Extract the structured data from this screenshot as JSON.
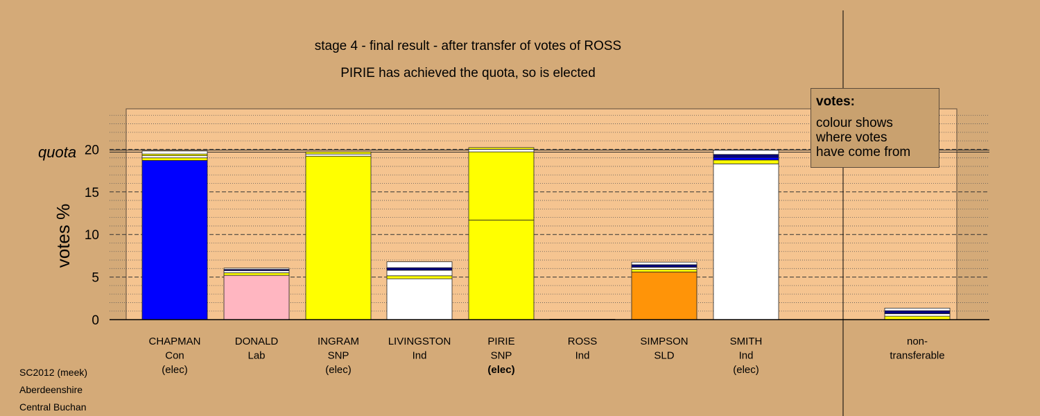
{
  "title_line1": "stage 4 - final result - after transfer of votes of ROSS",
  "title_line2": "PIRIE has achieved the quota, so is elected",
  "legend": {
    "title": "votes:",
    "lines": [
      "colour shows",
      "where votes",
      "have come from"
    ]
  },
  "footer": [
    "SC2012 (meek)",
    "Aberdeenshire",
    "Central Buchan"
  ],
  "colors": {
    "background": "#d4aa78",
    "plot_area": "#f5c490",
    "Con": "#0000ff",
    "Lab": "#ffb6c1",
    "SNP": "#ffff00",
    "Ind": "#ffffff",
    "SLD": "#ff9408",
    "navy": "#000080"
  },
  "chart_data": {
    "type": "bar",
    "stacked": true,
    "ylabel": "votes %",
    "quota_label": "quota",
    "quota": 19.8,
    "ylim": [
      0,
      25
    ],
    "yticks": [
      0,
      5,
      10,
      15,
      20
    ],
    "grid": true,
    "categories": [
      {
        "name": "CHAPMAN",
        "party": "Con",
        "status": "(elec)",
        "status_bold": false,
        "segments": [
          {
            "value": 18.7,
            "color": "#0000ff"
          },
          {
            "value": 0.3,
            "color": "#ffff00"
          },
          {
            "value": 0.25,
            "color": "#ffffff"
          },
          {
            "value": 0.2,
            "color": "#ffff00"
          },
          {
            "value": 0.35,
            "color": "#ffffff"
          }
        ]
      },
      {
        "name": "DONALD",
        "party": "Lab",
        "status": "",
        "status_bold": false,
        "segments": [
          {
            "value": 5.2,
            "color": "#ffb6c1"
          },
          {
            "value": 0.3,
            "color": "#ffff00"
          },
          {
            "value": 0.25,
            "color": "#ffffff"
          },
          {
            "value": 0.15,
            "color": "#000080"
          },
          {
            "value": 0.15,
            "color": "#ffffff"
          }
        ]
      },
      {
        "name": "INGRAM",
        "party": "SNP",
        "status": "(elec)",
        "status_bold": false,
        "segments": [
          {
            "value": 19.2,
            "color": "#ffff00"
          },
          {
            "value": 0.25,
            "color": "#ffffff"
          },
          {
            "value": 0.25,
            "color": "#ffff00"
          }
        ]
      },
      {
        "name": "LIVINGSTON",
        "party": "Ind",
        "status": "",
        "status_bold": false,
        "segments": [
          {
            "value": 4.8,
            "color": "#ffffff"
          },
          {
            "value": 0.35,
            "color": "#ffff00"
          },
          {
            "value": 0.65,
            "color": "#ffffff"
          },
          {
            "value": 0.3,
            "color": "#000080"
          },
          {
            "value": 0.7,
            "color": "#ffffff"
          }
        ]
      },
      {
        "name": "PIRIE",
        "party": "SNP",
        "status": "(elec)",
        "status_bold": true,
        "segments": [
          {
            "value": 11.7,
            "color": "#ffff00"
          },
          {
            "value": 8.0,
            "color": "#ffff00"
          },
          {
            "value": 0.3,
            "color": "#ffffff"
          },
          {
            "value": 0.2,
            "color": "#ffff00"
          }
        ]
      },
      {
        "name": "ROSS",
        "party": "Ind",
        "status": "",
        "status_bold": false,
        "segments": [
          {
            "value": 0.05,
            "color": "#ffffff"
          }
        ]
      },
      {
        "name": "SIMPSON",
        "party": "SLD",
        "status": "",
        "status_bold": false,
        "segments": [
          {
            "value": 5.6,
            "color": "#ff9408"
          },
          {
            "value": 0.3,
            "color": "#ffff00"
          },
          {
            "value": 0.25,
            "color": "#ffffff"
          },
          {
            "value": 0.3,
            "color": "#000080"
          },
          {
            "value": 0.3,
            "color": "#ffffff"
          }
        ]
      },
      {
        "name": "SMITH",
        "party": "Ind",
        "status": "(elec)",
        "status_bold": false,
        "segments": [
          {
            "value": 18.3,
            "color": "#ffffff"
          },
          {
            "value": 0.45,
            "color": "#ffff00"
          },
          {
            "value": 0.3,
            "color": "#0000ff"
          },
          {
            "value": 0.35,
            "color": "#000080"
          },
          {
            "value": 0.5,
            "color": "#ffffff"
          }
        ]
      },
      {
        "name": "non-",
        "party": "transferable",
        "status": "",
        "status_bold": false,
        "segments": [
          {
            "value": 0.4,
            "color": "#ffff00"
          },
          {
            "value": 0.3,
            "color": "#ffffff"
          },
          {
            "value": 0.35,
            "color": "#000080"
          },
          {
            "value": 0.3,
            "color": "#ffffff"
          }
        ]
      }
    ]
  }
}
